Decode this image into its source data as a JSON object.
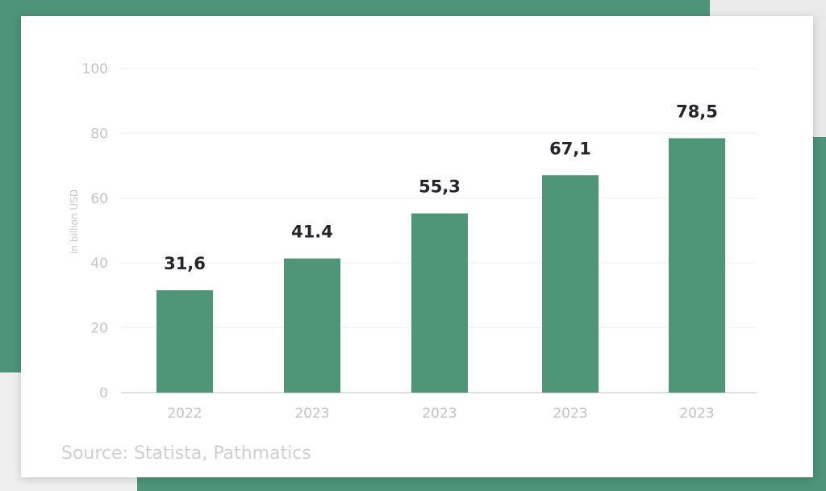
{
  "chart_data": {
    "type": "bar",
    "categories": [
      "2022",
      "2023",
      "2023",
      "2023",
      "2023"
    ],
    "values": [
      31.6,
      41.4,
      55.3,
      67.1,
      78.5
    ],
    "value_labels": [
      "31,6",
      "41.4",
      "55,3",
      "67,1",
      "78,5"
    ],
    "ylabel": "in billion USD",
    "ylim": [
      0,
      100
    ],
    "yticks": [
      0,
      20,
      40,
      60,
      80,
      100
    ],
    "grid": true,
    "bar_color": "#4f9679"
  },
  "source": "Source: Statista, Pathmatics",
  "colors": {
    "background_green": "#4d9479",
    "card": "#ffffff",
    "bar": "#4f9679",
    "value_label": "#23252b",
    "axis_text": "#c4c4c4"
  }
}
